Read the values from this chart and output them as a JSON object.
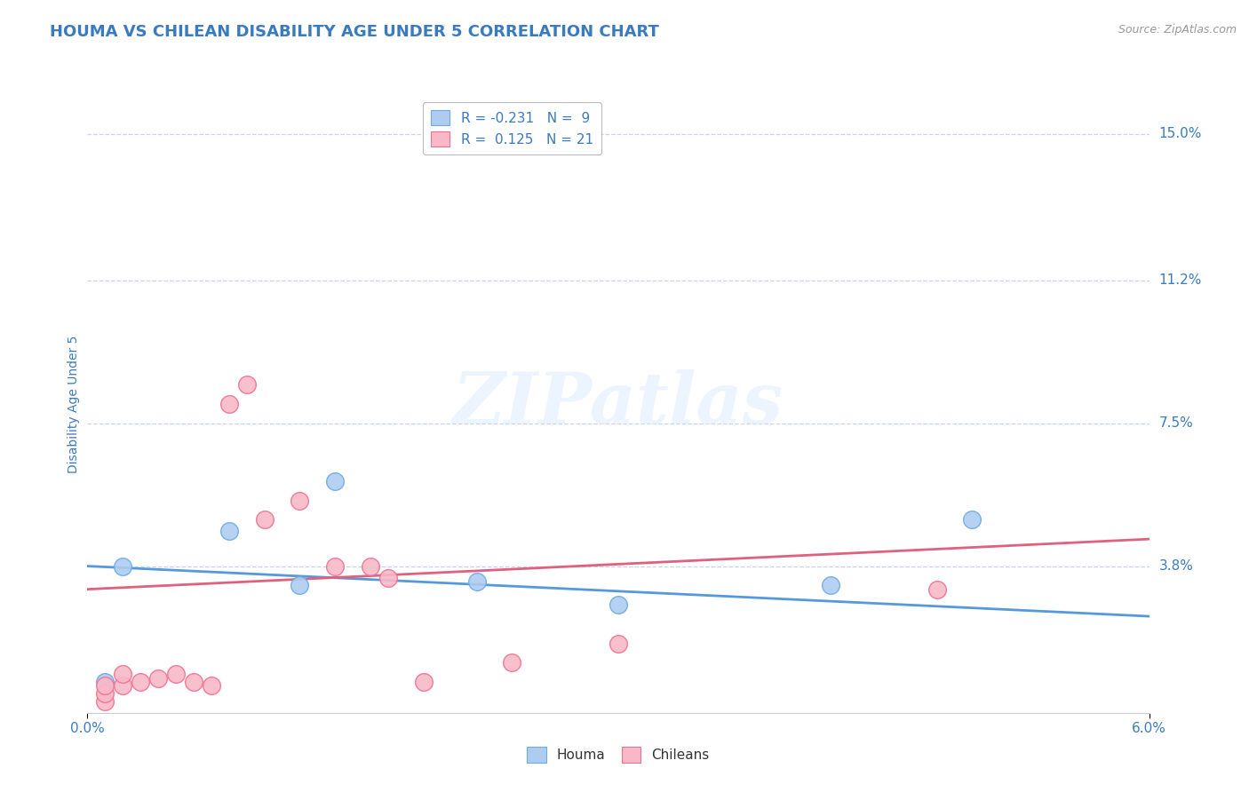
{
  "title": "HOUMA VS CHILEAN DISABILITY AGE UNDER 5 CORRELATION CHART",
  "source_text": "Source: ZipAtlas.com",
  "ylabel": "Disability Age Under 5",
  "xlim": [
    0.0,
    0.06
  ],
  "ylim": [
    0.0,
    0.16
  ],
  "ytick_labels": [
    "3.8%",
    "7.5%",
    "11.2%",
    "15.0%"
  ],
  "ytick_values": [
    0.038,
    0.075,
    0.112,
    0.15
  ],
  "xtick_labels": [
    "0.0%",
    "6.0%"
  ],
  "xtick_values": [
    0.0,
    0.06
  ],
  "houma_color": "#aeccf0",
  "chilean_color": "#f8b8c8",
  "houma_edge_color": "#6aaae8",
  "chilean_edge_color": "#f07090",
  "houma_line_color": "#5599dd",
  "chilean_line_color": "#e06080",
  "legend_houma_r": "-0.231",
  "legend_houma_n": "9",
  "legend_chilean_r": "0.125",
  "legend_chilean_n": "21",
  "houma_x": [
    0.001,
    0.002,
    0.008,
    0.012,
    0.014,
    0.022,
    0.03,
    0.042,
    0.05
  ],
  "houma_y": [
    0.008,
    0.038,
    0.047,
    0.033,
    0.06,
    0.034,
    0.028,
    0.033,
    0.05
  ],
  "chilean_x": [
    0.001,
    0.001,
    0.001,
    0.002,
    0.002,
    0.003,
    0.004,
    0.005,
    0.006,
    0.007,
    0.008,
    0.009,
    0.01,
    0.012,
    0.014,
    0.016,
    0.017,
    0.019,
    0.024,
    0.03,
    0.048
  ],
  "chilean_y": [
    0.003,
    0.005,
    0.007,
    0.007,
    0.01,
    0.008,
    0.009,
    0.01,
    0.008,
    0.007,
    0.08,
    0.085,
    0.05,
    0.055,
    0.038,
    0.038,
    0.035,
    0.008,
    0.013,
    0.018,
    0.032
  ],
  "houma_line_x0": 0.0,
  "houma_line_y0": 0.038,
  "houma_line_x1": 0.06,
  "houma_line_y1": 0.025,
  "chilean_line_x0": 0.0,
  "chilean_line_y0": 0.032,
  "chilean_line_x1": 0.06,
  "chilean_line_y1": 0.045,
  "watermark_text": "ZIPatlas",
  "title_color": "#3a7abf",
  "axis_label_color": "#3a7abf",
  "tick_color": "#3a7abf",
  "grid_color": "#c8d4e8",
  "background_color": "#ffffff",
  "title_fontsize": 13,
  "axis_label_fontsize": 10,
  "tick_fontsize": 11,
  "legend_fontsize": 11,
  "source_fontsize": 9
}
